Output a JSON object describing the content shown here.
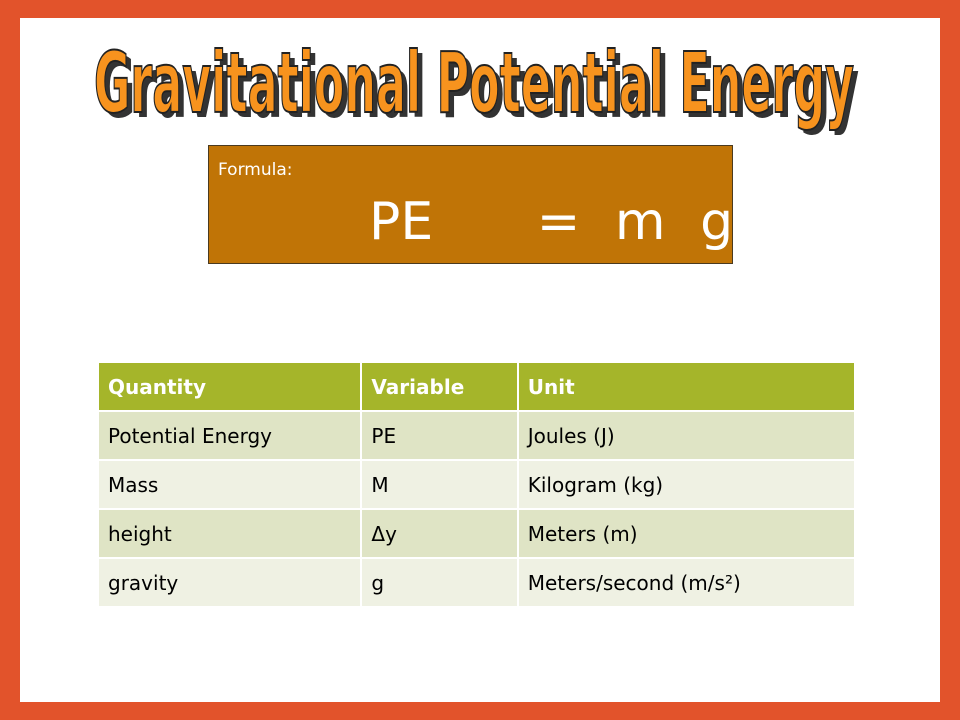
{
  "title": "Gravitational Potential Energy",
  "formula": {
    "label": "Formula:",
    "expression": "PE   = m g h"
  },
  "table": {
    "header": [
      "Quantity",
      "Variable",
      "Unit"
    ],
    "rows": [
      [
        "Potential Energy",
        "PE",
        "Joules (J)"
      ],
      [
        "Mass",
        "M",
        "Kilogram (kg)"
      ],
      [
        "height",
        "Δy",
        "Meters (m)"
      ],
      [
        "gravity",
        "g",
        "Meters/second (m/s²)"
      ]
    ]
  }
}
